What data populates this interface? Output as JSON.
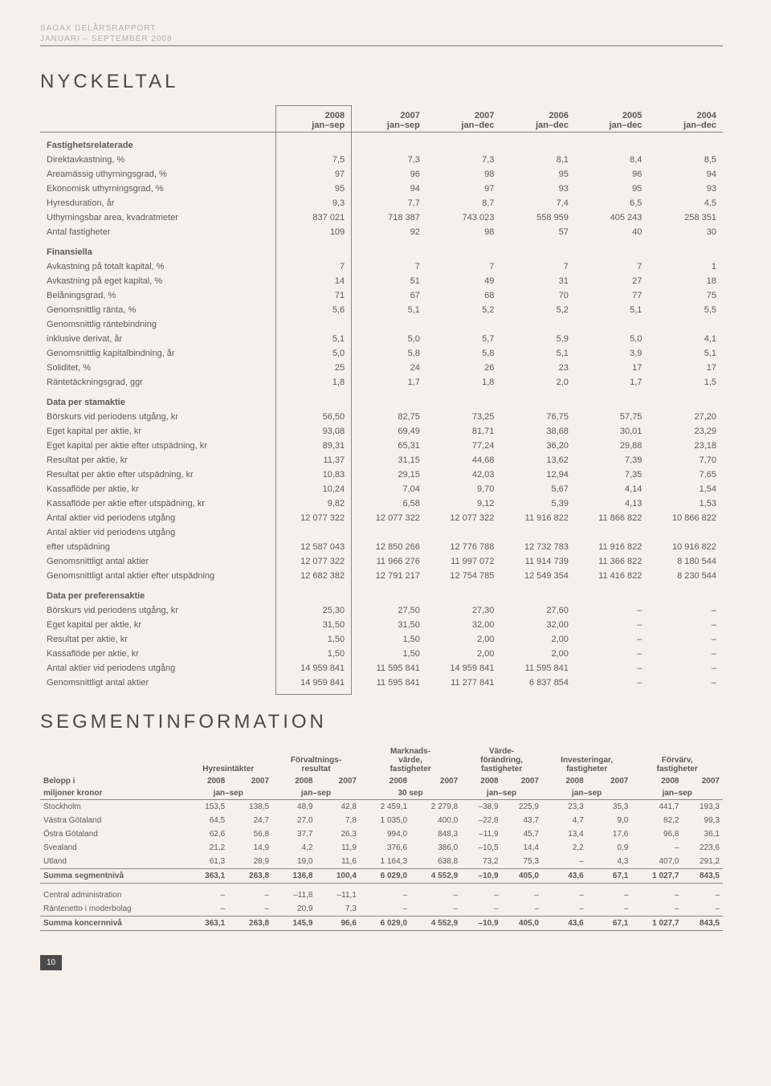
{
  "header": {
    "title1": "SAGAX DELÅRSRAPPORT",
    "title2": "JANUARI – SEPTEMBER 2008"
  },
  "section1_title": "NYCKELTAL",
  "section2_title": "SEGMENTINFORMATION",
  "page_number": "10",
  "nyckeltal": {
    "headers": [
      {
        "y": "2008",
        "p": "jan–sep"
      },
      {
        "y": "2007",
        "p": "jan–sep"
      },
      {
        "y": "2007",
        "p": "jan–dec"
      },
      {
        "y": "2006",
        "p": "jan–dec"
      },
      {
        "y": "2005",
        "p": "jan–dec"
      },
      {
        "y": "2004",
        "p": "jan–dec"
      }
    ],
    "sections": [
      {
        "title": "Fastighetsrelaterade",
        "rows": [
          [
            "Direktavkastning, %",
            "7,5",
            "7,3",
            "7,3",
            "8,1",
            "8,4",
            "8,5"
          ],
          [
            "Areamässig uthyrningsgrad, %",
            "97",
            "96",
            "98",
            "95",
            "96",
            "94"
          ],
          [
            "Ekonomisk uthyrningsgrad, %",
            "95",
            "94",
            "97",
            "93",
            "95",
            "93"
          ],
          [
            "Hyresduration, år",
            "9,3",
            "7,7",
            "8,7",
            "7,4",
            "6,5",
            "4,5"
          ],
          [
            "Uthyrningsbar area, kvadratmeter",
            "837 021",
            "718 387",
            "743 023",
            "558 959",
            "405 243",
            "258 351"
          ],
          [
            "Antal fastigheter",
            "109",
            "92",
            "98",
            "57",
            "40",
            "30"
          ]
        ]
      },
      {
        "title": "Finansiella",
        "rows": [
          [
            "Avkastning på totalt kapital, %",
            "7",
            "7",
            "7",
            "7",
            "7",
            "1"
          ],
          [
            "Avkastning på eget kapital, %",
            "14",
            "51",
            "49",
            "31",
            "27",
            "18"
          ],
          [
            "Belåningsgrad, %",
            "71",
            "67",
            "68",
            "70",
            "77",
            "75"
          ],
          [
            "Genomsnittlig ränta, %",
            "5,6",
            "5,1",
            "5,2",
            "5,2",
            "5,1",
            "5,5"
          ],
          [
            "Genomsnittlig räntebindning",
            "",
            "",
            "",
            "",
            "",
            ""
          ],
          [
            " inklusive derivat, år",
            "5,1",
            "5,0",
            "5,7",
            "5,9",
            "5,0",
            "4,1"
          ],
          [
            "Genomsnittlig kapitalbindning, år",
            "5,0",
            "5,8",
            "5,8",
            "5,1",
            "3,9",
            "5,1"
          ],
          [
            "Soliditet, %",
            "25",
            "24",
            "26",
            "23",
            "17",
            "17"
          ],
          [
            "Räntetäckningsgrad, ggr",
            "1,8",
            "1,7",
            "1,8",
            "2,0",
            "1,7",
            "1,5"
          ]
        ]
      },
      {
        "title": "Data per stamaktie",
        "rows": [
          [
            "Börskurs vid periodens utgång, kr",
            "56,50",
            "82,75",
            "73,25",
            "76,75",
            "57,75",
            "27,20"
          ],
          [
            "Eget kapital per aktie, kr",
            "93,08",
            "69,49",
            "81,71",
            "38,68",
            "30,01",
            "23,29"
          ],
          [
            "Eget kapital per aktie efter utspädning, kr",
            "89,31",
            "65,31",
            "77,24",
            "36,20",
            "29,88",
            "23,18"
          ],
          [
            "Resultat per aktie, kr",
            "11,37",
            "31,15",
            "44,68",
            "13,62",
            "7,39",
            "7,70"
          ],
          [
            "Resultat per aktie efter utspädning, kr",
            "10,83",
            "29,15",
            "42,03",
            "12,94",
            "7,35",
            "7,65"
          ],
          [
            "Kassaflöde per aktie, kr",
            "10,24",
            "7,04",
            "9,70",
            "5,67",
            "4,14",
            "1,54"
          ],
          [
            "Kassaflöde per aktie efter utspädning, kr",
            "9,82",
            "6,58",
            "9,12",
            "5,39",
            "4,13",
            "1,53"
          ],
          [
            "Antal aktier vid periodens utgång",
            "12 077 322",
            "12 077 322",
            "12 077 322",
            "11 916 822",
            "11 866 822",
            "10 866 822"
          ],
          [
            "Antal aktier vid periodens utgång",
            "",
            "",
            "",
            "",
            "",
            ""
          ],
          [
            "efter utspädning",
            "12 587 043",
            "12 850 266",
            "12 776 788",
            "12 732 783",
            "11 916 822",
            "10 916 822"
          ],
          [
            "Genomsnittligt antal aktier",
            "12 077 322",
            "11 966 276",
            "11 997 072",
            "11 914 739",
            "11 366 822",
            "8 180 544"
          ],
          [
            "Genomsnittligt antal aktier efter utspädning",
            "12 682 382",
            "12 791 217",
            "12 754 785",
            "12 549 354",
            "11 416 822",
            "8 230 544"
          ]
        ]
      },
      {
        "title": "Data per preferensaktie",
        "rows": [
          [
            "Börskurs vid periodens utgång, kr",
            "25,30",
            "27,50",
            "27,30",
            "27,60",
            "–",
            "–"
          ],
          [
            "Eget kapital per aktie, kr",
            "31,50",
            "31,50",
            "32,00",
            "32,00",
            "–",
            "–"
          ],
          [
            "Resultat per aktie, kr",
            "1,50",
            "1,50",
            "2,00",
            "2,00",
            "–",
            "–"
          ],
          [
            "Kassaflöde per aktie, kr",
            "1,50",
            "1,50",
            "2,00",
            "2,00",
            "–",
            "–"
          ],
          [
            "Antal aktier vid periodens utgång",
            "14 959 841",
            "11 595 841",
            "14 959 841",
            "11 595 841",
            "–",
            "–"
          ],
          [
            "Genomsnittligt antal aktier",
            "14 959 841",
            "11 595 841",
            "11 277 841",
            "6 837 854",
            "–",
            "–"
          ]
        ]
      }
    ]
  },
  "segment": {
    "groups": [
      "Hyresintäkter",
      "Förvaltnings-\nresultat",
      "Marknads-\nvärde,\nfastigheter",
      "Värde-\nförändring,\nfastigheter",
      "Investeringar,\nfastigheter",
      "Förvärv,\nfastigheter"
    ],
    "label_title": "Belopp i\nmiljoner kronor",
    "years": [
      "2008",
      "2007"
    ],
    "periods": [
      "jan–sep",
      "jan–sep",
      "30 sep",
      "jan–sep",
      "jan–sep",
      "jan–sep"
    ],
    "rows": [
      {
        "label": "Stockholm",
        "v": [
          "153,5",
          "138,5",
          "48,9",
          "42,8",
          "2 459,1",
          "2 279,8",
          "–38,9",
          "225,9",
          "23,3",
          "35,3",
          "441,7",
          "193,3"
        ]
      },
      {
        "label": "Västra Götaland",
        "v": [
          "64,5",
          "24,7",
          "27,0",
          "7,8",
          "1 035,0",
          "400,0",
          "–22,8",
          "43,7",
          "4,7",
          "9,0",
          "82,2",
          "99,3"
        ]
      },
      {
        "label": "Östra Götaland",
        "v": [
          "62,6",
          "56,8",
          "37,7",
          "26,3",
          "994,0",
          "848,3",
          "–11,9",
          "45,7",
          "13,4",
          "17,6",
          "96,8",
          "36,1"
        ]
      },
      {
        "label": "Svealand",
        "v": [
          "21,2",
          "14,9",
          "4,2",
          "11,9",
          "376,6",
          "386,0",
          "–10,5",
          "14,4",
          "2,2",
          "0,9",
          "–",
          "223,6"
        ]
      },
      {
        "label": "Utland",
        "v": [
          "61,3",
          "28,9",
          "19,0",
          "11,6",
          "1 164,3",
          "638,8",
          "73,2",
          "75,3",
          "–",
          "4,3",
          "407,0",
          "291,2"
        ],
        "underline": true
      },
      {
        "label": "Summa segmentnivå",
        "v": [
          "363,1",
          "263,8",
          "136,8",
          "100,4",
          "6 029,0",
          "4 552,9",
          "–10,9",
          "405,0",
          "43,6",
          "67,1",
          "1 027,7",
          "843,5"
        ],
        "bold": true,
        "underline": true
      },
      {
        "label": " ",
        "v": [
          "",
          "",
          "",
          "",
          "",
          "",
          "",
          "",
          "",
          "",
          "",
          ""
        ],
        "spacer": true
      },
      {
        "label": "Central administration",
        "v": [
          "–",
          "–",
          "–11,8",
          "–11,1",
          "–",
          "–",
          "–",
          "–",
          "–",
          "–",
          "–",
          "–"
        ]
      },
      {
        "label": "Räntenetto i moderbolag",
        "v": [
          "–",
          "–",
          "20,9",
          "7,3",
          "–",
          "–",
          "–",
          "–",
          "–",
          "–",
          "–",
          "–"
        ],
        "underline": true
      },
      {
        "label": "Summa koncernnivå",
        "v": [
          "363,1",
          "263,8",
          "145,9",
          "96,6",
          "6 029,0",
          "4 552,9",
          "–10,9",
          "405,0",
          "43,6",
          "67,1",
          "1 027,7",
          "843,5"
        ],
        "bold": true,
        "underline": true
      }
    ]
  }
}
